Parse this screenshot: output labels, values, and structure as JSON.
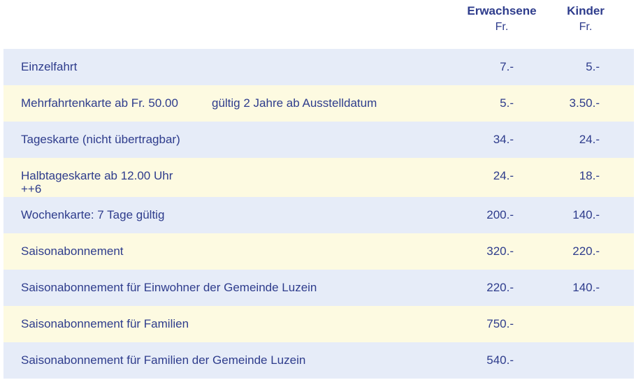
{
  "header": {
    "adult_title": "Erwachsene",
    "adult_unit": "Fr.",
    "child_title": "Kinder",
    "child_unit": "Fr."
  },
  "rows": [
    {
      "label": "Einzelfahrt",
      "note": "",
      "sub": "",
      "adult": "7.-",
      "child": "5.-"
    },
    {
      "label": "Mehrfahrtenkarte ab Fr. 50.00",
      "note": "gültig 2 Jahre ab Ausstelldatum",
      "sub": "",
      "adult": "5.-",
      "child": "3.50.-"
    },
    {
      "label": "Tageskarte (nicht übertragbar)",
      "note": "",
      "sub": "",
      "adult": "34.-",
      "child": "24.-"
    },
    {
      "label": "Halbtageskarte ab 12.00 Uhr",
      "note": "",
      "sub": "++6",
      "adult": "24.-",
      "child": "18.-"
    },
    {
      "label": "Wochenkarte: 7 Tage gültig",
      "note": "",
      "sub": "",
      "adult": "200.-",
      "child": "140.-"
    },
    {
      "label": "Saisonabonnement",
      "note": "",
      "sub": "",
      "adult": "320.-",
      "child": "220.-"
    },
    {
      "label": "Saisonabonnement für Einwohner der Gemeinde Luzein",
      "note": "",
      "sub": "",
      "adult": "220.-",
      "child": "140.-"
    },
    {
      "label": "Saisonabonnement für Familien",
      "note": "",
      "sub": "",
      "adult": "750.-",
      "child": ""
    },
    {
      "label": "Saisonabonnement für Familien der Gemeinde Luzein",
      "note": "",
      "sub": "",
      "adult": "540.-",
      "child": ""
    }
  ],
  "colors": {
    "text": "#2e3c8c",
    "row_blue": "#e6ecf8",
    "row_yellow": "#fdfae1"
  }
}
